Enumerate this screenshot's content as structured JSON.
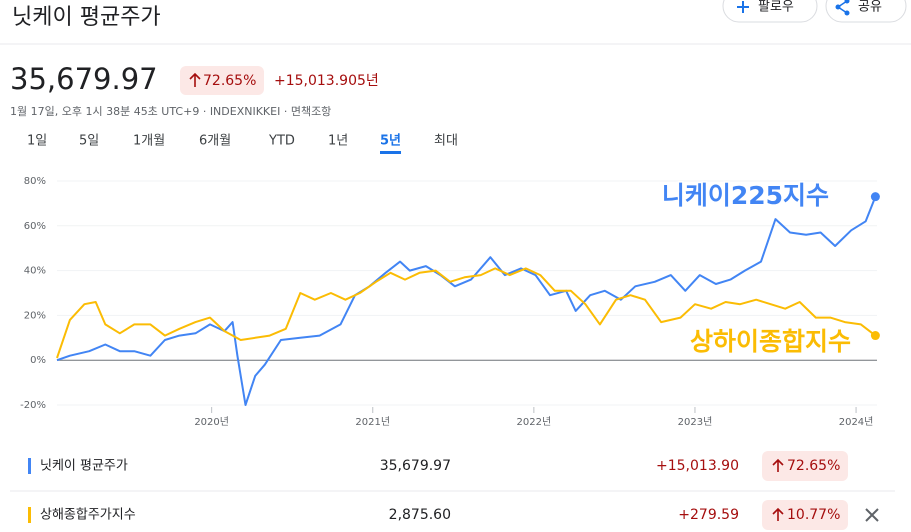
{
  "header": {
    "title": "닛케이 평균주가",
    "follow": "팔로우",
    "share": "공유"
  },
  "quote": {
    "price": "35,679.97",
    "change_pct": "72.65%",
    "change_abs": "+15,013.90",
    "period": "5년",
    "timestamp": "1월 17일, 오후 1시 38분 45초 UTC+9 · INDEXNIKKEI · 면책조항"
  },
  "tabs": {
    "items": [
      "1일",
      "5일",
      "1개월",
      "6개월",
      "YTD",
      "1년",
      "5년",
      "최대"
    ],
    "active": 6
  },
  "chart_data": {
    "type": "line",
    "annotations": [
      "니케이225지수",
      "상하이종합지수"
    ],
    "xlim": [
      2019.04,
      2024.13
    ],
    "xticks": [
      {
        "value": 2020,
        "label": "2020년"
      },
      {
        "value": 2021,
        "label": "2021년"
      },
      {
        "value": 2022,
        "label": "2022년"
      },
      {
        "value": 2023,
        "label": "2023년"
      },
      {
        "value": 2024,
        "label": "2024년"
      }
    ],
    "ylim": [
      -20,
      80
    ],
    "yticks": [
      {
        "value": -20,
        "label": "-20%"
      },
      {
        "value": 0,
        "label": "0%"
      },
      {
        "value": 20,
        "label": "20%"
      },
      {
        "value": 40,
        "label": "40%"
      },
      {
        "value": 60,
        "label": "60%"
      },
      {
        "value": 80,
        "label": "80%"
      }
    ],
    "grid": true,
    "series": [
      {
        "name": "닛케이 평균주가",
        "color": "#4285f4",
        "x": [
          2019.04,
          2019.12,
          2019.24,
          2019.34,
          2019.43,
          2019.52,
          2019.62,
          2019.71,
          2019.8,
          2019.9,
          2019.99,
          2020.08,
          2020.13,
          2020.16,
          2020.21,
          2020.27,
          2020.33,
          2020.43,
          2020.55,
          2020.67,
          2020.8,
          2020.89,
          2020.98,
          2021.08,
          2021.17,
          2021.23,
          2021.33,
          2021.42,
          2021.51,
          2021.61,
          2021.73,
          2021.82,
          2021.92,
          2022.01,
          2022.1,
          2022.2,
          2022.26,
          2022.35,
          2022.44,
          2022.54,
          2022.63,
          2022.75,
          2022.85,
          2022.94,
          2023.03,
          2023.13,
          2023.22,
          2023.31,
          2023.41,
          2023.5,
          2023.59,
          2023.69,
          2023.78,
          2023.87,
          2023.97,
          2024.06,
          2024.12
        ],
        "values": [
          0,
          2,
          4,
          7,
          4,
          4,
          2,
          9,
          11,
          12,
          16,
          13,
          17,
          2,
          -20,
          -7,
          -2,
          9,
          10,
          11,
          16,
          29,
          33,
          39,
          44,
          40,
          42,
          38,
          33,
          36,
          46,
          38,
          41,
          38,
          29,
          31,
          22,
          29,
          31,
          27,
          33,
          35,
          38,
          31,
          38,
          34,
          36,
          40,
          44,
          63,
          57,
          56,
          57,
          51,
          58,
          62,
          73
        ]
      },
      {
        "name": "상해종합주가지수",
        "color": "#fbbc04",
        "x": [
          2019.04,
          2019.12,
          2019.21,
          2019.28,
          2019.34,
          2019.43,
          2019.52,
          2019.62,
          2019.71,
          2019.8,
          2019.9,
          2019.99,
          2020.08,
          2020.18,
          2020.27,
          2020.36,
          2020.46,
          2020.55,
          2020.64,
          2020.74,
          2020.83,
          2020.92,
          2021.02,
          2021.11,
          2021.2,
          2021.29,
          2021.39,
          2021.48,
          2021.57,
          2021.67,
          2021.76,
          2021.85,
          2021.95,
          2022.04,
          2022.13,
          2022.23,
          2022.32,
          2022.41,
          2022.51,
          2022.6,
          2022.69,
          2022.79,
          2022.91,
          2023.0,
          2023.1,
          2023.19,
          2023.28,
          2023.38,
          2023.47,
          2023.56,
          2023.65,
          2023.75,
          2023.84,
          2023.93,
          2024.03,
          2024.12
        ],
        "values": [
          1,
          18,
          25,
          26,
          16,
          12,
          16,
          16,
          11,
          14,
          17,
          19,
          13,
          9,
          10,
          11,
          14,
          30,
          27,
          30,
          27,
          30,
          35,
          39,
          36,
          39,
          40,
          35,
          37,
          38,
          41,
          38,
          41,
          38,
          31,
          31,
          25,
          16,
          27,
          29,
          27,
          17,
          19,
          25,
          23,
          26,
          25,
          27,
          25,
          23,
          26,
          19,
          19,
          17,
          16,
          11
        ]
      }
    ]
  },
  "table": {
    "rows": [
      {
        "name": "닛케이 평균주가",
        "price": "35,679.97",
        "change": "+15,013.90",
        "change_pct": "72.65%"
      },
      {
        "name": "상해종합주가지수",
        "price": "2,875.60",
        "change": "+279.59",
        "change_pct": "10.77%"
      }
    ]
  }
}
